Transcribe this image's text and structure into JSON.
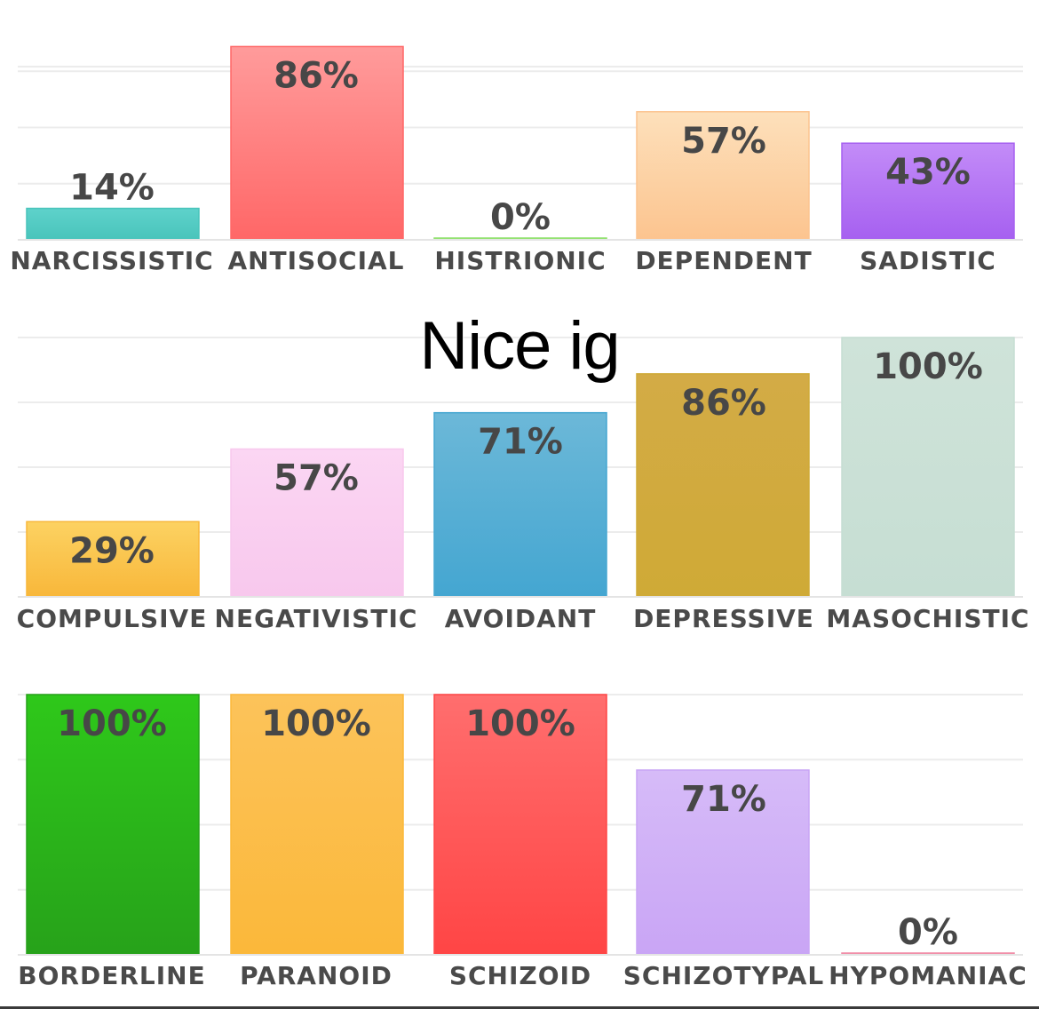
{
  "overlay_text": "Nice ig",
  "chart_data": [
    {
      "type": "bar",
      "categories": [
        "NARCISSISTIC",
        "ANTISOCIAL",
        "HISTRIONIC",
        "DEPENDENT",
        "SADISTIC"
      ],
      "values": [
        14,
        86,
        0,
        57,
        43
      ],
      "value_labels": [
        "14%",
        "86%",
        "0%",
        "57%",
        "43%"
      ],
      "colors": [
        [
          "#5ed2cb",
          "#49c4bb"
        ],
        [
          "#ff9b9b",
          "#ff6767"
        ],
        [
          "#a8ec8f",
          "#8ee06b"
        ],
        [
          "#fde0bb",
          "#fcc48f"
        ],
        [
          "#c38cf8",
          "#a660f0"
        ]
      ],
      "ylim": [
        0,
        100
      ],
      "grid": true
    },
    {
      "type": "bar",
      "categories": [
        "COMPULSIVE",
        "NEGATIVISTIC",
        "AVOIDANT",
        "DEPRESSIVE",
        "MASOCHISTIC"
      ],
      "values": [
        29,
        57,
        71,
        86,
        100
      ],
      "value_labels": [
        "29%",
        "57%",
        "71%",
        "86%",
        "100%"
      ],
      "colors": [
        [
          "#fcd262",
          "#f8b73a"
        ],
        [
          "#fbd6f3",
          "#f8c8ed"
        ],
        [
          "#6cb8d8",
          "#44a6d1"
        ],
        [
          "#d3ab46",
          "#cfaa36"
        ],
        [
          "#cfe3d9",
          "#c6ded3"
        ]
      ],
      "ylim": [
        0,
        100
      ],
      "grid": true
    },
    {
      "type": "bar",
      "categories": [
        "BORDERLINE",
        "PARANOID",
        "SCHIZOID",
        "SCHIZOTYPAL",
        "HYPOMANIAC"
      ],
      "values": [
        100,
        100,
        100,
        71,
        0
      ],
      "value_labels": [
        "100%",
        "100%",
        "100%",
        "71%",
        "0%"
      ],
      "colors": [
        [
          "#2ec81a",
          "#27a21a"
        ],
        [
          "#fcc35a",
          "#fbb83a"
        ],
        [
          "#ff6e6e",
          "#ff4545"
        ],
        [
          "#d6bbf8",
          "#c9a5f5"
        ],
        [
          "#f6a4b9",
          "#f08aa5"
        ]
      ],
      "ylim": [
        0,
        100
      ],
      "grid": true
    }
  ]
}
